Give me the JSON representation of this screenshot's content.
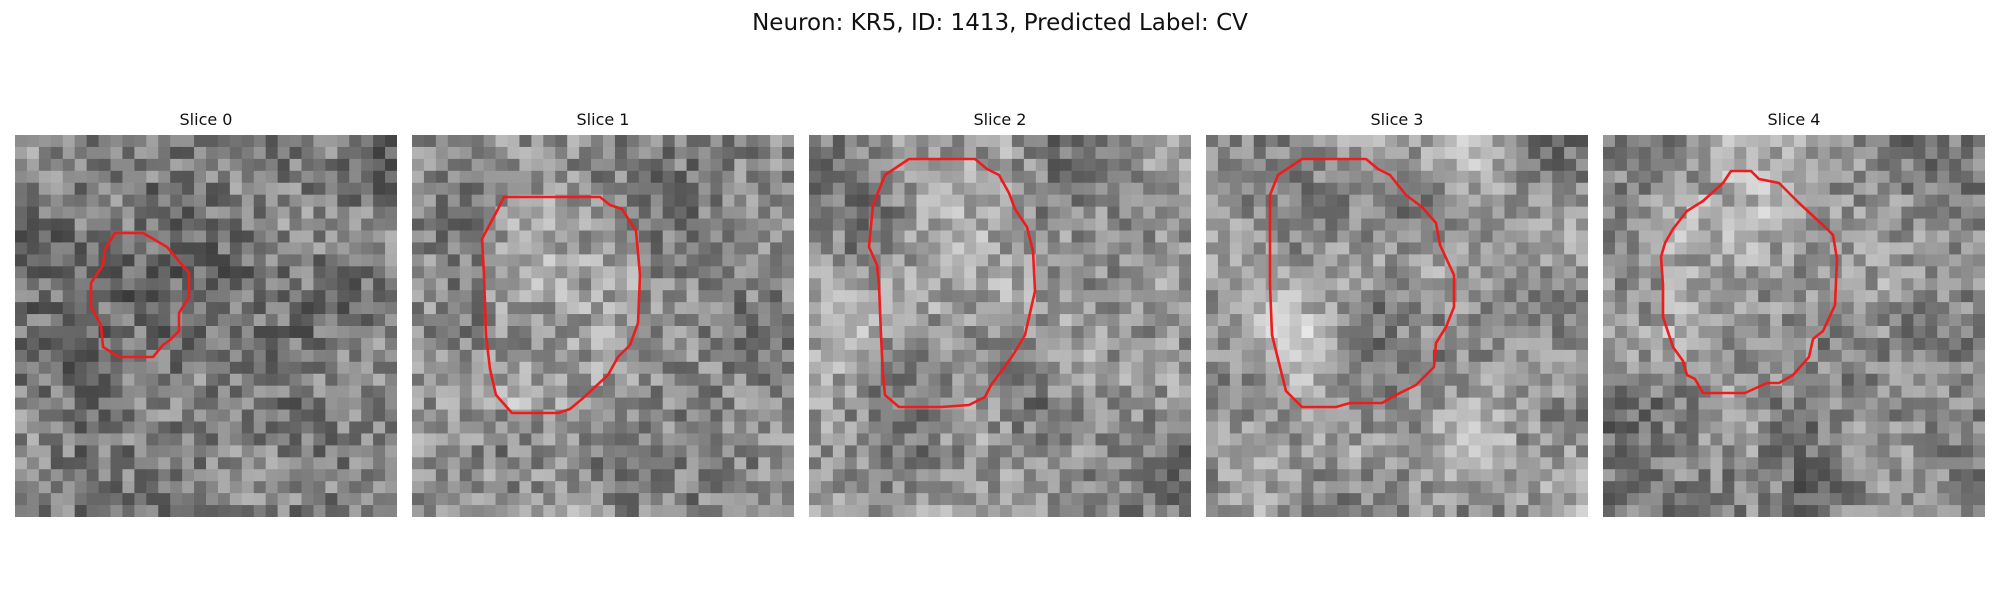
{
  "title": "Neuron: KR5, ID: 1413, Predicted Label: CV",
  "contour_color": "#ee1c1c",
  "colormap": "gray",
  "slices": [
    {
      "label": "Slice 0"
    },
    {
      "label": "Slice 1"
    },
    {
      "label": "Slice 2"
    },
    {
      "label": "Slice 3"
    },
    {
      "label": "Slice 4"
    }
  ]
}
